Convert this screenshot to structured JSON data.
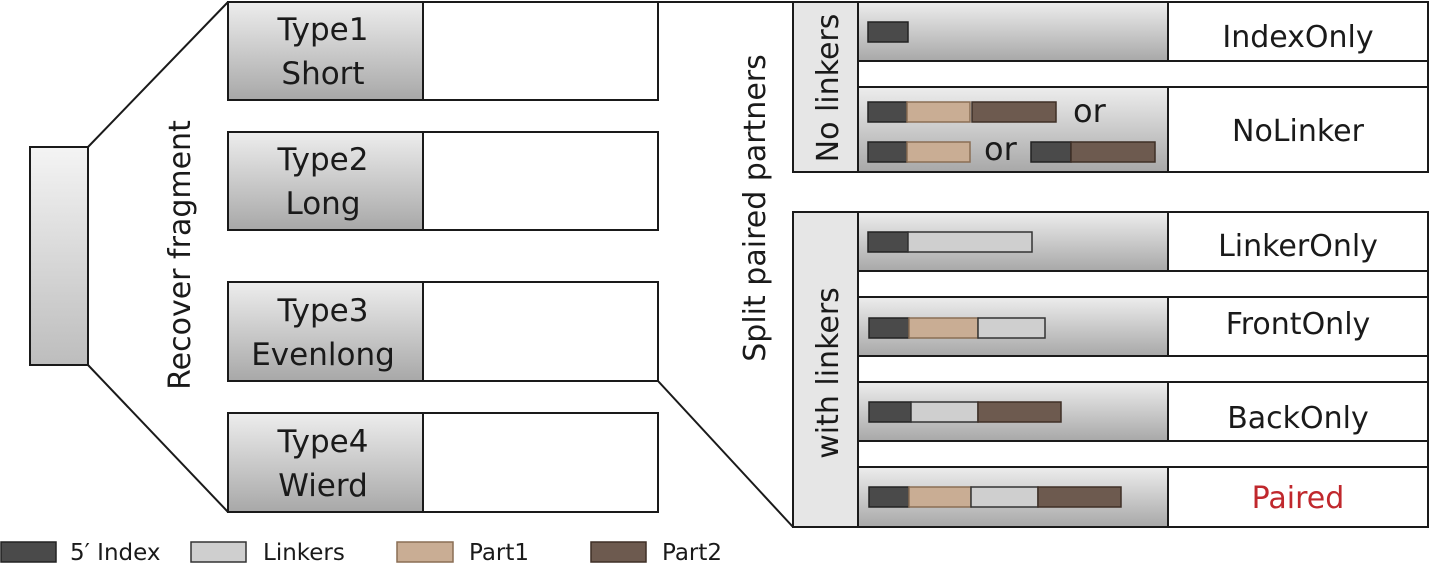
{
  "colors": {
    "index": "#4a4a4a",
    "linker": "#cfcfcf",
    "part1": "#c9ad94",
    "part2": "#6d5a4f",
    "paired_text": "#c0282d",
    "gradient_top": "#ececec",
    "gradient_bottom": "#a9a9a9"
  },
  "left": {
    "recover_label": "Recover fragment",
    "types": [
      {
        "line1": "Type1",
        "line2": "Short"
      },
      {
        "line1": "Type2",
        "line2": "Long"
      },
      {
        "line1": "Type3",
        "line2": "Evenlong"
      },
      {
        "line1": "Type4",
        "line2": "Wierd"
      }
    ]
  },
  "right": {
    "split_label": "Split paired partners",
    "no_linkers_label": "No linkers",
    "with_linkers_label": "with linkers",
    "or_word": "or",
    "categories": {
      "index_only": "IndexOnly",
      "no_linker": "NoLinker",
      "linker_only": "LinkerOnly",
      "front_only": "FrontOnly",
      "back_only": "BackOnly",
      "paired": "Paired"
    }
  },
  "legend": [
    {
      "key": "index",
      "label": "5′ Index"
    },
    {
      "key": "linker",
      "label": "Linkers"
    },
    {
      "key": "part1",
      "label": "Part1"
    },
    {
      "key": "part2",
      "label": "Part2"
    }
  ]
}
